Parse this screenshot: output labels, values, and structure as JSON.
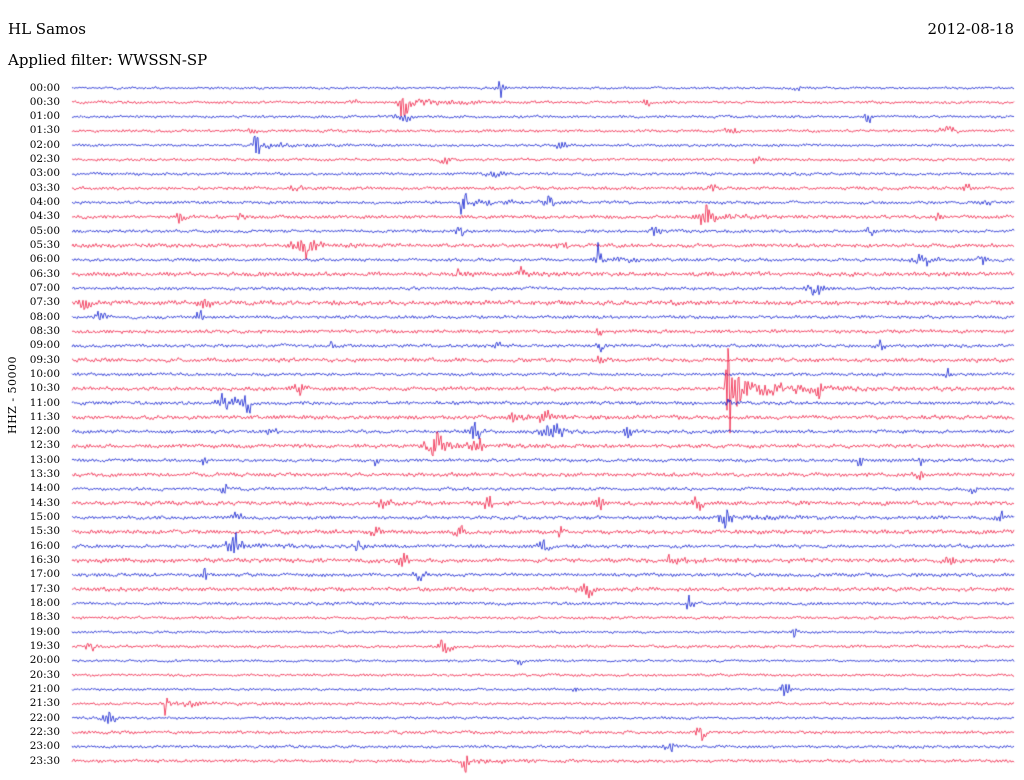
{
  "header": {
    "station": "HL Samos",
    "date": "2012-08-18",
    "filter": "Applied filter: WWSSN-SP"
  },
  "axis": {
    "channel_label": "HHZ - 50000"
  },
  "chart_data": {
    "type": "line",
    "kind": "helicorder",
    "title": "HL Samos",
    "date": "2012-08-18",
    "filter": "WWSSN-SP",
    "channel": "HHZ",
    "gain": "50000",
    "minutes_per_row": 30,
    "rows_count": 48,
    "time_start": "00:00",
    "time_end": "24:00",
    "legend": "none",
    "grid": "off",
    "colors": {
      "blue": "#0012cc",
      "red": "#ee1038"
    },
    "events_format": "[x_fraction_of_row, amplitude_px, width_sigma_px]",
    "rows": [
      {
        "t": "00:00",
        "c": "b",
        "n": 1.2,
        "e": [
          [
            0.455,
            8,
            2.5
          ],
          [
            0.77,
            3,
            2
          ]
        ]
      },
      {
        "t": "00:30",
        "c": "r",
        "n": 1.3,
        "e": [
          [
            0.3,
            4,
            2
          ],
          [
            0.352,
            18,
            3
          ],
          [
            0.61,
            5,
            2
          ]
        ]
      },
      {
        "t": "01:00",
        "c": "b",
        "n": 1.3,
        "e": [
          [
            0.352,
            4,
            6
          ],
          [
            0.845,
            8,
            2.5
          ]
        ]
      },
      {
        "t": "01:30",
        "c": "r",
        "n": 1.4,
        "e": [
          [
            0.19,
            4,
            3
          ],
          [
            0.7,
            3,
            4
          ],
          [
            0.93,
            4,
            5
          ]
        ]
      },
      {
        "t": "02:00",
        "c": "b",
        "n": 1.3,
        "e": [
          [
            0.196,
            13,
            2.2
          ],
          [
            0.52,
            3,
            4
          ]
        ]
      },
      {
        "t": "02:30",
        "c": "r",
        "n": 1.4,
        "e": [
          [
            0.394,
            4,
            4
          ],
          [
            0.726,
            5,
            3
          ]
        ]
      },
      {
        "t": "03:00",
        "c": "b",
        "n": 1.4,
        "e": [
          [
            0.45,
            3,
            6
          ]
        ]
      },
      {
        "t": "03:30",
        "c": "r",
        "n": 1.6,
        "e": [
          [
            0.237,
            4,
            4
          ],
          [
            0.68,
            3,
            4
          ],
          [
            0.95,
            4,
            4
          ]
        ]
      },
      {
        "t": "04:00",
        "c": "b",
        "n": 1.5,
        "e": [
          [
            0.415,
            14,
            2.2
          ],
          [
            0.506,
            6,
            3.5
          ],
          [
            0.97,
            4,
            3
          ]
        ]
      },
      {
        "t": "04:30",
        "c": "r",
        "n": 1.7,
        "e": [
          [
            0.115,
            5,
            3
          ],
          [
            0.18,
            4,
            3
          ],
          [
            0.672,
            12,
            5
          ],
          [
            0.92,
            4,
            3
          ]
        ]
      },
      {
        "t": "05:00",
        "c": "b",
        "n": 1.5,
        "e": [
          [
            0.412,
            7,
            2.5
          ],
          [
            0.62,
            6,
            3.5
          ],
          [
            0.848,
            4,
            3
          ]
        ]
      },
      {
        "t": "05:30",
        "c": "r",
        "n": 1.8,
        "e": [
          [
            0.245,
            9,
            7
          ],
          [
            0.52,
            5,
            3.5
          ]
        ]
      },
      {
        "t": "06:00",
        "c": "b",
        "n": 1.5,
        "e": [
          [
            0.558,
            12,
            2.2
          ],
          [
            0.905,
            7,
            7
          ],
          [
            0.965,
            5,
            3
          ]
        ]
      },
      {
        "t": "06:30",
        "c": "r",
        "n": 2.1,
        "e": [
          [
            0.41,
            4,
            4
          ],
          [
            0.475,
            4,
            4
          ]
        ]
      },
      {
        "t": "07:00",
        "c": "b",
        "n": 1.5,
        "e": [
          [
            0.79,
            6,
            6
          ]
        ]
      },
      {
        "t": "07:30",
        "c": "r",
        "n": 2.2,
        "e": [
          [
            0.014,
            6,
            3.5
          ],
          [
            0.141,
            7,
            3.5
          ]
        ]
      },
      {
        "t": "08:00",
        "c": "b",
        "n": 1.6,
        "e": [
          [
            0.03,
            6,
            4
          ],
          [
            0.135,
            5,
            3
          ]
        ]
      },
      {
        "t": "08:30",
        "c": "r",
        "n": 1.7,
        "e": [
          [
            0.56,
            3,
            3
          ]
        ]
      },
      {
        "t": "09:00",
        "c": "b",
        "n": 1.6,
        "e": [
          [
            0.274,
            5,
            2.5
          ],
          [
            0.451,
            6,
            2
          ],
          [
            0.561,
            6,
            2.5
          ],
          [
            0.858,
            5,
            2.5
          ]
        ]
      },
      {
        "t": "09:30",
        "c": "r",
        "n": 1.9,
        "e": [
          [
            0.56,
            4,
            3
          ]
        ]
      },
      {
        "t": "10:00",
        "c": "b",
        "n": 1.5,
        "e": [
          [
            0.93,
            6,
            3.5
          ]
        ]
      },
      {
        "t": "10:30",
        "c": "r",
        "n": 1.9,
        "e": [
          [
            0.242,
            7,
            4
          ],
          [
            0.696,
            120,
            1.3
          ],
          [
            0.703,
            16,
            4
          ],
          [
            0.792,
            8,
            3.5
          ]
        ]
      },
      {
        "t": "11:00",
        "c": "b",
        "n": 1.7,
        "e": [
          [
            0.165,
            8,
            7
          ],
          [
            0.186,
            8,
            3
          ],
          [
            0.697,
            5,
            2
          ]
        ]
      },
      {
        "t": "11:30",
        "c": "r",
        "n": 1.9,
        "e": [
          [
            0.465,
            11,
            2.2
          ],
          [
            0.502,
            6,
            3.5
          ]
        ]
      },
      {
        "t": "12:00",
        "c": "b",
        "n": 1.7,
        "e": [
          [
            0.21,
            7,
            3.5
          ],
          [
            0.428,
            8,
            5
          ],
          [
            0.51,
            7,
            8
          ],
          [
            0.59,
            6,
            3.5
          ]
        ]
      },
      {
        "t": "12:30",
        "c": "r",
        "n": 1.9,
        "e": [
          [
            0.385,
            11,
            6
          ],
          [
            0.43,
            7,
            4
          ]
        ]
      },
      {
        "t": "13:00",
        "c": "b",
        "n": 1.6,
        "e": [
          [
            0.141,
            5,
            2
          ],
          [
            0.322,
            5,
            2
          ],
          [
            0.837,
            5,
            2.5
          ],
          [
            0.9,
            4,
            2.5
          ]
        ]
      },
      {
        "t": "13:30",
        "c": "r",
        "n": 1.9,
        "e": [
          [
            0.9,
            5,
            3.5
          ]
        ]
      },
      {
        "t": "14:00",
        "c": "b",
        "n": 1.6,
        "e": [
          [
            0.162,
            5,
            2.5
          ],
          [
            0.958,
            6,
            2.5
          ]
        ]
      },
      {
        "t": "14:30",
        "c": "r",
        "n": 2.0,
        "e": [
          [
            0.332,
            6,
            3.5
          ],
          [
            0.443,
            6,
            3.5
          ],
          [
            0.56,
            5,
            3.5
          ],
          [
            0.665,
            6,
            3.5
          ]
        ]
      },
      {
        "t": "15:00",
        "c": "b",
        "n": 1.7,
        "e": [
          [
            0.173,
            6,
            3.5
          ],
          [
            0.693,
            9,
            4.5
          ],
          [
            0.985,
            6,
            3
          ]
        ]
      },
      {
        "t": "15:30",
        "c": "r",
        "n": 2.0,
        "e": [
          [
            0.322,
            6,
            3.5
          ],
          [
            0.412,
            6,
            3.5
          ],
          [
            0.518,
            5,
            3.5
          ]
        ]
      },
      {
        "t": "16:00",
        "c": "b",
        "n": 1.7,
        "e": [
          [
            0.172,
            9,
            5
          ],
          [
            0.305,
            6,
            3.5
          ],
          [
            0.502,
            6,
            3.5
          ]
        ]
      },
      {
        "t": "16:30",
        "c": "r",
        "n": 2.0,
        "e": [
          [
            0.353,
            6,
            3.5
          ],
          [
            0.634,
            10,
            1.8
          ],
          [
            0.932,
            5,
            3
          ]
        ]
      },
      {
        "t": "17:00",
        "c": "b",
        "n": 1.7,
        "e": [
          [
            0.141,
            6,
            2
          ],
          [
            0.37,
            4,
            5
          ]
        ]
      },
      {
        "t": "17:30",
        "c": "r",
        "n": 1.9,
        "e": [
          [
            0.545,
            8,
            4.5
          ]
        ]
      },
      {
        "t": "18:00",
        "c": "b",
        "n": 1.5,
        "e": [
          [
            0.656,
            7,
            2.5
          ]
        ]
      },
      {
        "t": "18:30",
        "c": "r",
        "n": 1.4,
        "e": []
      },
      {
        "t": "19:00",
        "c": "b",
        "n": 1.2,
        "e": [
          [
            0.767,
            6,
            2
          ]
        ]
      },
      {
        "t": "19:30",
        "c": "r",
        "n": 1.4,
        "e": [
          [
            0.02,
            7,
            3
          ],
          [
            0.396,
            7,
            4.5
          ]
        ]
      },
      {
        "t": "20:00",
        "c": "b",
        "n": 1.2,
        "e": [
          [
            0.475,
            4,
            2
          ]
        ]
      },
      {
        "t": "20:30",
        "c": "r",
        "n": 1.3,
        "e": []
      },
      {
        "t": "21:00",
        "c": "b",
        "n": 1.2,
        "e": [
          [
            0.534,
            5,
            2
          ],
          [
            0.757,
            7,
            4.5
          ]
        ]
      },
      {
        "t": "21:30",
        "c": "r",
        "n": 1.4,
        "e": [
          [
            0.099,
            9,
            2
          ],
          [
            0.13,
            5,
            3
          ]
        ]
      },
      {
        "t": "22:00",
        "c": "b",
        "n": 1.3,
        "e": [
          [
            0.04,
            8,
            4.5
          ]
        ]
      },
      {
        "t": "22:30",
        "c": "r",
        "n": 1.5,
        "e": [
          [
            0.667,
            8,
            3.5
          ]
        ]
      },
      {
        "t": "23:00",
        "c": "b",
        "n": 1.4,
        "e": [
          [
            0.635,
            5,
            3.5
          ]
        ]
      },
      {
        "t": "23:30",
        "c": "r",
        "n": 1.5,
        "e": [
          [
            0.417,
            9,
            2.2
          ]
        ]
      }
    ]
  }
}
